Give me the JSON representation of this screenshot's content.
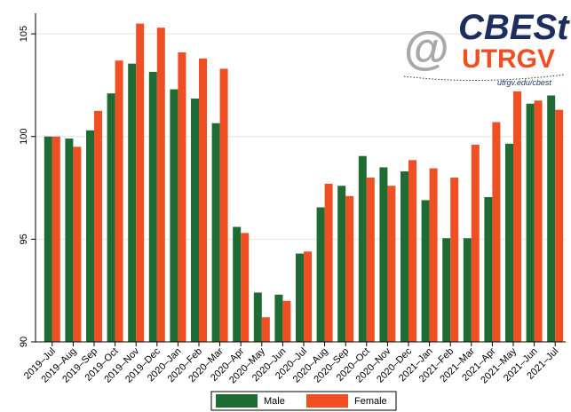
{
  "chart_data": {
    "type": "bar",
    "categories": [
      "2019–Jul",
      "2019–Aug",
      "2019–Sep",
      "2019–Oct",
      "2019–Nov",
      "2019–Dec",
      "2020–Jan",
      "2020–Feb",
      "2020–Mar",
      "2020–Apr",
      "2020–May",
      "2020–Jun",
      "2020–Jul",
      "2020–Aug",
      "2020–Sep",
      "2020–Oct",
      "2020–Nov",
      "2020–Dec",
      "2021–Jan",
      "2021–Feb",
      "2021–Mar",
      "2021–Apr",
      "2021–May",
      "2021–Jun",
      "2021–Jul"
    ],
    "series": [
      {
        "name": "Male",
        "color": "#1e6b34",
        "values": [
          100,
          99.9,
          100.3,
          102.1,
          103.55,
          103.15,
          102.3,
          101.85,
          100.65,
          95.6,
          92.4,
          92.3,
          94.3,
          96.55,
          97.6,
          99.05,
          98.5,
          98.3,
          96.9,
          95.05,
          95.05,
          97.05,
          99.65,
          101.6,
          102.0
        ]
      },
      {
        "name": "Female",
        "color": "#f04e23",
        "values": [
          100,
          99.5,
          101.25,
          103.7,
          105.5,
          105.3,
          104.1,
          103.8,
          103.3,
          95.3,
          91.2,
          92.0,
          94.4,
          97.7,
          97.1,
          98.0,
          97.6,
          98.85,
          98.45,
          98.0,
          99.6,
          100.7,
          102.2,
          101.75,
          101.3
        ]
      }
    ],
    "ylim": [
      90,
      106
    ],
    "yticks": [
      90,
      95,
      100,
      105
    ],
    "grid": true,
    "legend": "bottom",
    "logo": {
      "at": "@",
      "name": "CBESt",
      "org": "UTRGV",
      "url": "utrgv.edu/cbest"
    }
  }
}
